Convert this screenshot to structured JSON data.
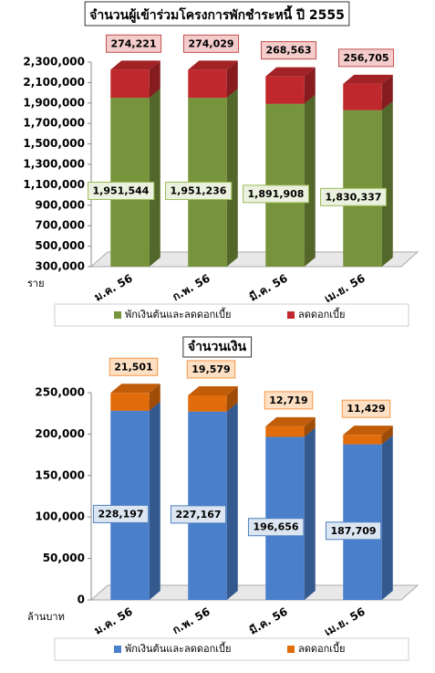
{
  "chart_data": [
    {
      "type": "bar3d-stacked",
      "title": "จำนวนผู้เข้าร่วมโครงการพักชำระหนี้ ปี 2555",
      "y_unit": "ราย",
      "categories": [
        "ม.ค. 56",
        "ก.พ. 56",
        "มี.ค. 56",
        "เม.ย. 56"
      ],
      "series": [
        {
          "name": "พักเงินต้นและลดดอกเบี้ย",
          "color": "#77933c",
          "label_fill": "#ebf1de",
          "label_stroke": "#9bbb59",
          "values": [
            1951544,
            1951236,
            1891908,
            1830337
          ],
          "value_labels": [
            "1,951,544",
            "1,951,236",
            "1,891,908",
            "1,830,337"
          ]
        },
        {
          "name": "ลดดอกเบี้ย",
          "color": "#c0282d",
          "label_fill": "#f4cccc",
          "label_stroke": "#c0504d",
          "values": [
            274221,
            274029,
            268563,
            256705
          ],
          "value_labels": [
            "274,221",
            "274,029",
            "268,563",
            "256,705"
          ]
        }
      ],
      "ylim": [
        300000,
        2300000
      ],
      "yticks": [
        {
          "value": 300000,
          "label": "300,000"
        },
        {
          "value": 500000,
          "label": "500,000"
        },
        {
          "value": 700000,
          "label": "700,000"
        },
        {
          "value": 900000,
          "label": "900,000"
        },
        {
          "value": 1100000,
          "label": "1,100,000"
        },
        {
          "value": 1300000,
          "label": "1,300,000"
        },
        {
          "value": 1500000,
          "label": "1,500,000"
        },
        {
          "value": 1700000,
          "label": "1,700,000"
        },
        {
          "value": 1900000,
          "label": "1,900,000"
        },
        {
          "value": 2100000,
          "label": "2,100,000"
        },
        {
          "value": 2300000,
          "label": "2,300,000"
        }
      ]
    },
    {
      "type": "bar3d-stacked",
      "title": "จำนวนเงิน",
      "y_unit": "ล้านบาท",
      "categories": [
        "ม.ค. 56",
        "ก.พ. 56",
        "มี.ค. 56",
        "เม.ย. 56"
      ],
      "series": [
        {
          "name": "พักเงินต้นและลดดอกเบี้ย",
          "color": "#4a7fcc",
          "label_fill": "#dce6f2",
          "label_stroke": "#4f81bd",
          "values": [
            228197,
            227167,
            196656,
            187709
          ],
          "value_labels": [
            "228,197",
            "227,167",
            "196,656",
            "187,709"
          ]
        },
        {
          "name": "ลดดอกเบี้ย",
          "color": "#e36c0a",
          "label_fill": "#fde0c4",
          "label_stroke": "#f79646",
          "values": [
            21501,
            19579,
            12719,
            11429
          ],
          "value_labels": [
            "21,501",
            "19,579",
            "12,719",
            "11,429"
          ]
        }
      ],
      "ylim": [
        0,
        250000
      ],
      "yticks": [
        0,
        {
          "value": 50000,
          "label": "50,000"
        },
        {
          "value": 100000,
          "label": "100,000"
        },
        {
          "value": 150000,
          "label": "150,000"
        },
        {
          "value": 200000,
          "label": "200,000"
        },
        {
          "value": 250000,
          "label": "250,000"
        }
      ]
    }
  ]
}
